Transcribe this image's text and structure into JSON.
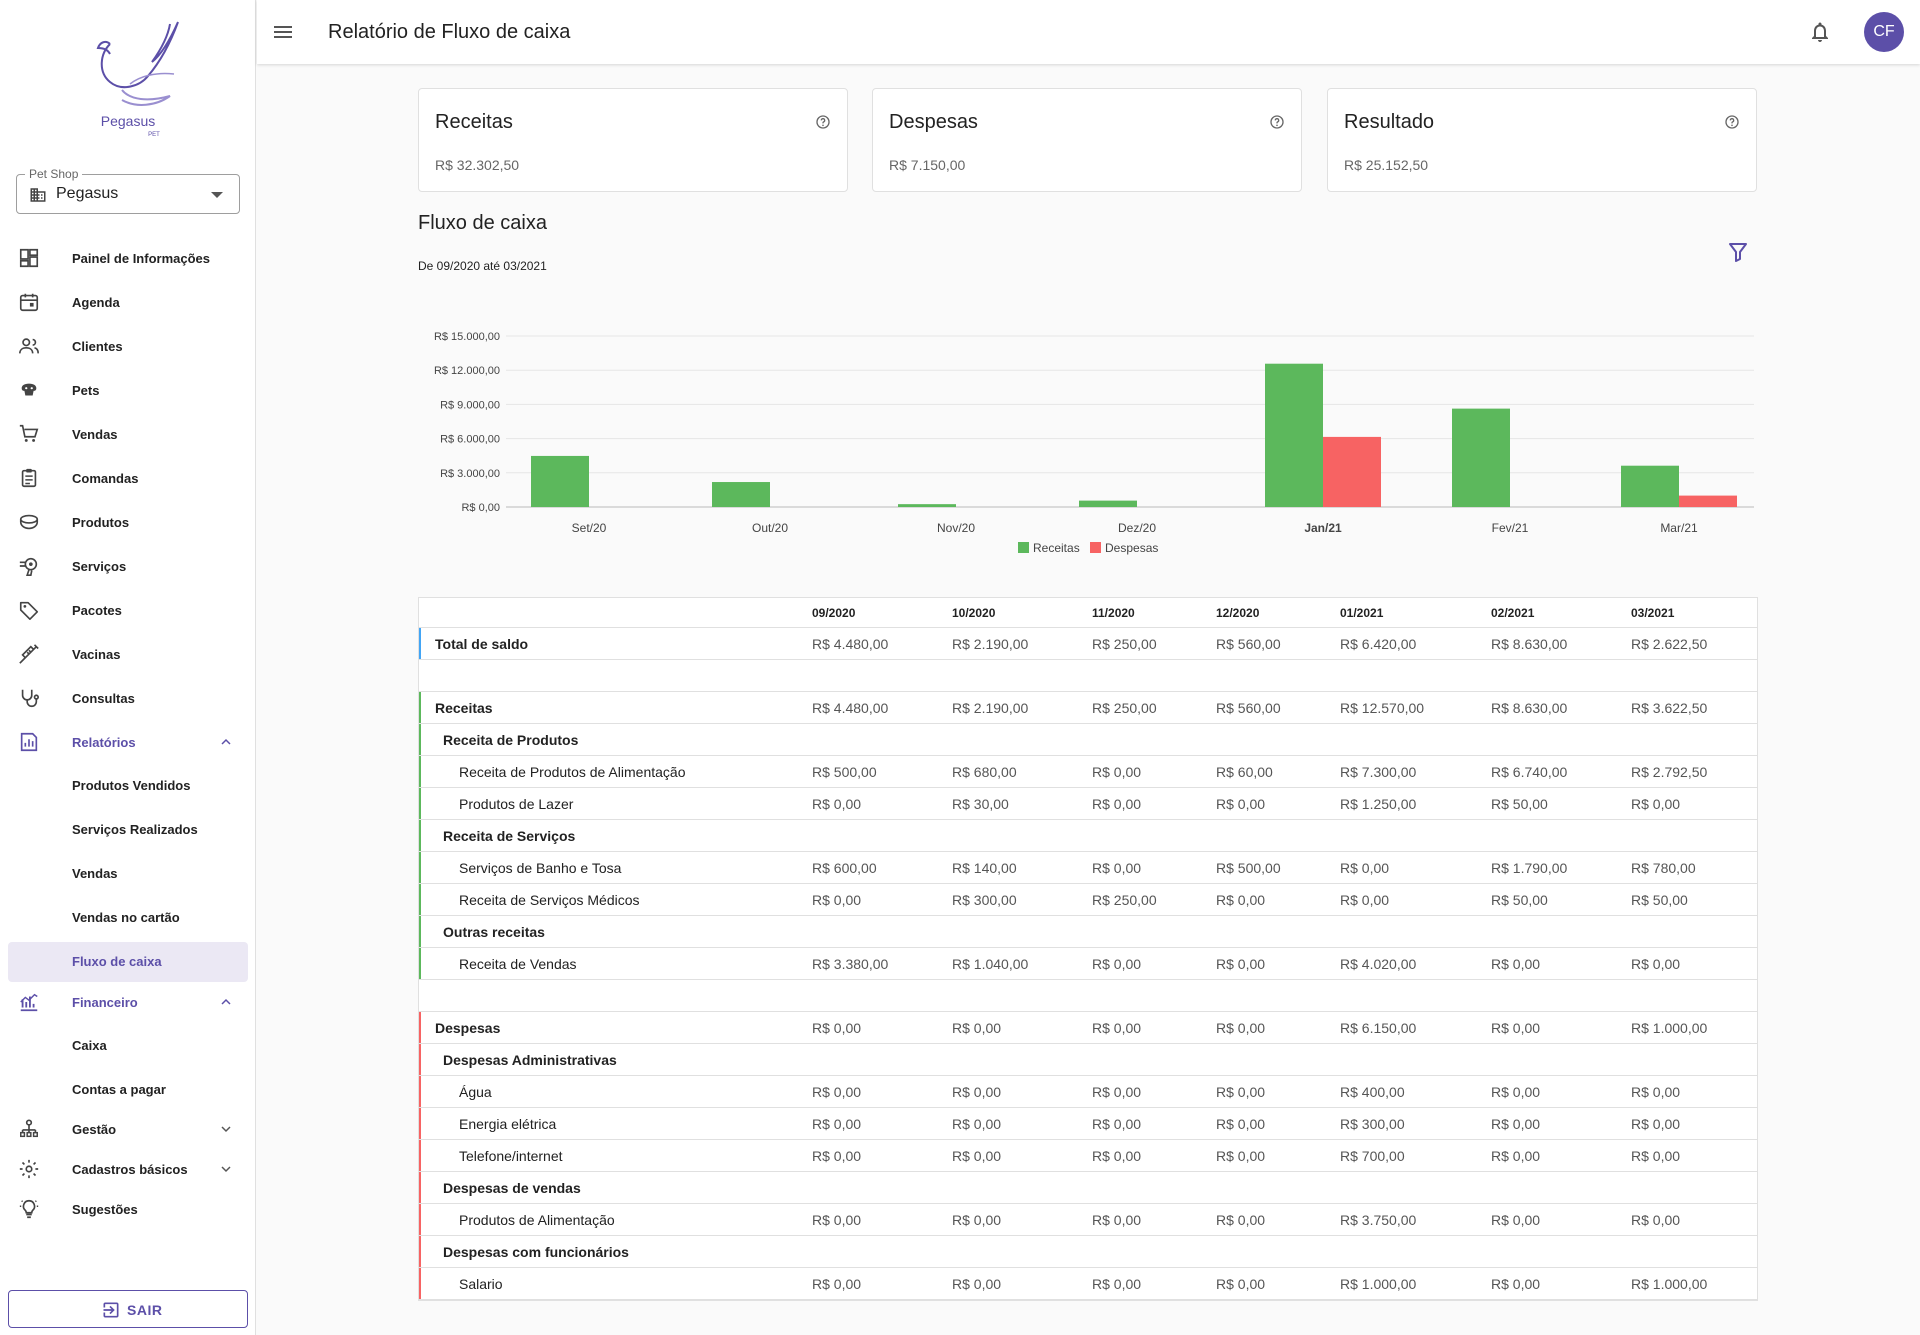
{
  "app": {
    "brand": "Pegasus",
    "brand_sub": "PET"
  },
  "shop_select": {
    "legend": "Pet Shop",
    "value": "Pegasus"
  },
  "nav": [
    {
      "label": "Painel de Informações",
      "icon": "dashboard-icon"
    },
    {
      "label": "Agenda",
      "icon": "calendar-icon"
    },
    {
      "label": "Clientes",
      "icon": "people-icon"
    },
    {
      "label": "Pets",
      "icon": "paw-icon"
    },
    {
      "label": "Vendas",
      "icon": "cart-icon"
    },
    {
      "label": "Comandas",
      "icon": "clipboard-icon"
    },
    {
      "label": "Produtos",
      "icon": "food-bowl-icon"
    },
    {
      "label": "Serviços",
      "icon": "hair-dryer-icon"
    },
    {
      "label": "Pacotes",
      "icon": "tag-icon"
    },
    {
      "label": "Vacinas",
      "icon": "syringe-icon"
    },
    {
      "label": "Consultas",
      "icon": "stethoscope-icon"
    }
  ],
  "relatorios": {
    "label": "Relatórios",
    "items": [
      "Produtos Vendidos",
      "Serviços Realizados",
      "Vendas",
      "Vendas no cartão",
      "Fluxo de caixa"
    ]
  },
  "financeiro": {
    "label": "Financeiro",
    "items": [
      "Caixa",
      "Contas a pagar"
    ]
  },
  "gestao": {
    "label": "Gestão"
  },
  "cadastros": {
    "label": "Cadastros básicos"
  },
  "sugestoes": {
    "label": "Sugestões"
  },
  "logout": {
    "label": "SAIR"
  },
  "topbar": {
    "title": "Relatório de Fluxo de caixa",
    "avatar": "CF"
  },
  "cards": [
    {
      "title": "Receitas",
      "value": "R$ 32.302,50"
    },
    {
      "title": "Despesas",
      "value": "R$ 7.150,00"
    },
    {
      "title": "Resultado",
      "value": "R$ 25.152,50"
    }
  ],
  "section": {
    "title": "Fluxo de caixa",
    "subtitle": "De 09/2020 até 03/2021"
  },
  "chart_data": {
    "type": "bar",
    "categories": [
      "Set/20",
      "Out/20",
      "Nov/20",
      "Dez/20",
      "Jan/21",
      "Fev/21",
      "Mar/21"
    ],
    "series": [
      {
        "name": "Receitas",
        "color": "#5cb85c",
        "values": [
          4480,
          2190,
          250,
          560,
          12570,
          8630,
          3622.5
        ]
      },
      {
        "name": "Despesas",
        "color": "#f76363",
        "values": [
          0,
          0,
          0,
          0,
          6150,
          0,
          1000
        ]
      }
    ],
    "y_ticks": [
      "R$ 0,00",
      "R$ 3.000,00",
      "R$ 6.000,00",
      "R$ 9.000,00",
      "R$ 12.000,00",
      "R$ 15.000,00"
    ],
    "ylim": [
      0,
      15000
    ],
    "legend": "bottom",
    "grid": true
  },
  "table": {
    "months": [
      "09/2020",
      "10/2020",
      "11/2020",
      "12/2020",
      "01/2021",
      "02/2021",
      "03/2021"
    ],
    "total": {
      "label": "Total de saldo",
      "values": [
        "R$ 4.480,00",
        "R$ 2.190,00",
        "R$ 250,00",
        "R$ 560,00",
        "R$ 6.420,00",
        "R$ 8.630,00",
        "R$ 2.622,50"
      ]
    },
    "receitas": {
      "label": "Receitas",
      "values": [
        "R$ 4.480,00",
        "R$ 2.190,00",
        "R$ 250,00",
        "R$ 560,00",
        "R$ 12.570,00",
        "R$ 8.630,00",
        "R$ 3.622,50"
      ],
      "groups": [
        {
          "label": "Receita de Produtos",
          "rows": [
            {
              "label": "Receita de Produtos de Alimentação",
              "values": [
                "R$ 500,00",
                "R$ 680,00",
                "R$ 0,00",
                "R$ 60,00",
                "R$ 7.300,00",
                "R$ 6.740,00",
                "R$ 2.792,50"
              ]
            },
            {
              "label": "Produtos de Lazer",
              "values": [
                "R$ 0,00",
                "R$ 30,00",
                "R$ 0,00",
                "R$ 0,00",
                "R$ 1.250,00",
                "R$ 50,00",
                "R$ 0,00"
              ]
            }
          ]
        },
        {
          "label": "Receita de Serviços",
          "rows": [
            {
              "label": "Serviços de Banho e Tosa",
              "values": [
                "R$ 600,00",
                "R$ 140,00",
                "R$ 0,00",
                "R$ 500,00",
                "R$ 0,00",
                "R$ 1.790,00",
                "R$ 780,00"
              ]
            },
            {
              "label": "Receita de Serviços Médicos",
              "values": [
                "R$ 0,00",
                "R$ 300,00",
                "R$ 250,00",
                "R$ 0,00",
                "R$ 0,00",
                "R$ 50,00",
                "R$ 50,00"
              ]
            }
          ]
        },
        {
          "label": "Outras receitas",
          "rows": [
            {
              "label": "Receita de Vendas",
              "values": [
                "R$ 3.380,00",
                "R$ 1.040,00",
                "R$ 0,00",
                "R$ 0,00",
                "R$ 4.020,00",
                "R$ 0,00",
                "R$ 0,00"
              ]
            }
          ]
        }
      ]
    },
    "despesas": {
      "label": "Despesas",
      "values": [
        "R$ 0,00",
        "R$ 0,00",
        "R$ 0,00",
        "R$ 0,00",
        "R$ 6.150,00",
        "R$ 0,00",
        "R$ 1.000,00"
      ],
      "groups": [
        {
          "label": "Despesas Administrativas",
          "rows": [
            {
              "label": "Água",
              "values": [
                "R$ 0,00",
                "R$ 0,00",
                "R$ 0,00",
                "R$ 0,00",
                "R$ 400,00",
                "R$ 0,00",
                "R$ 0,00"
              ]
            },
            {
              "label": "Energia elétrica",
              "values": [
                "R$ 0,00",
                "R$ 0,00",
                "R$ 0,00",
                "R$ 0,00",
                "R$ 300,00",
                "R$ 0,00",
                "R$ 0,00"
              ]
            },
            {
              "label": "Telefone/internet",
              "values": [
                "R$ 0,00",
                "R$ 0,00",
                "R$ 0,00",
                "R$ 0,00",
                "R$ 700,00",
                "R$ 0,00",
                "R$ 0,00"
              ]
            }
          ]
        },
        {
          "label": "Despesas de vendas",
          "rows": [
            {
              "label": "Produtos de Alimentação",
              "values": [
                "R$ 0,00",
                "R$ 0,00",
                "R$ 0,00",
                "R$ 0,00",
                "R$ 3.750,00",
                "R$ 0,00",
                "R$ 0,00"
              ]
            }
          ]
        },
        {
          "label": "Despesas com funcionários",
          "rows": [
            {
              "label": "Salario",
              "values": [
                "R$ 0,00",
                "R$ 0,00",
                "R$ 0,00",
                "R$ 0,00",
                "R$ 1.000,00",
                "R$ 0,00",
                "R$ 1.000,00"
              ]
            }
          ]
        }
      ]
    }
  },
  "colors": {
    "accent": "#5c4fa8",
    "income": "#5cb85c",
    "expense": "#f76363",
    "total_bar": "#42a5f5"
  }
}
